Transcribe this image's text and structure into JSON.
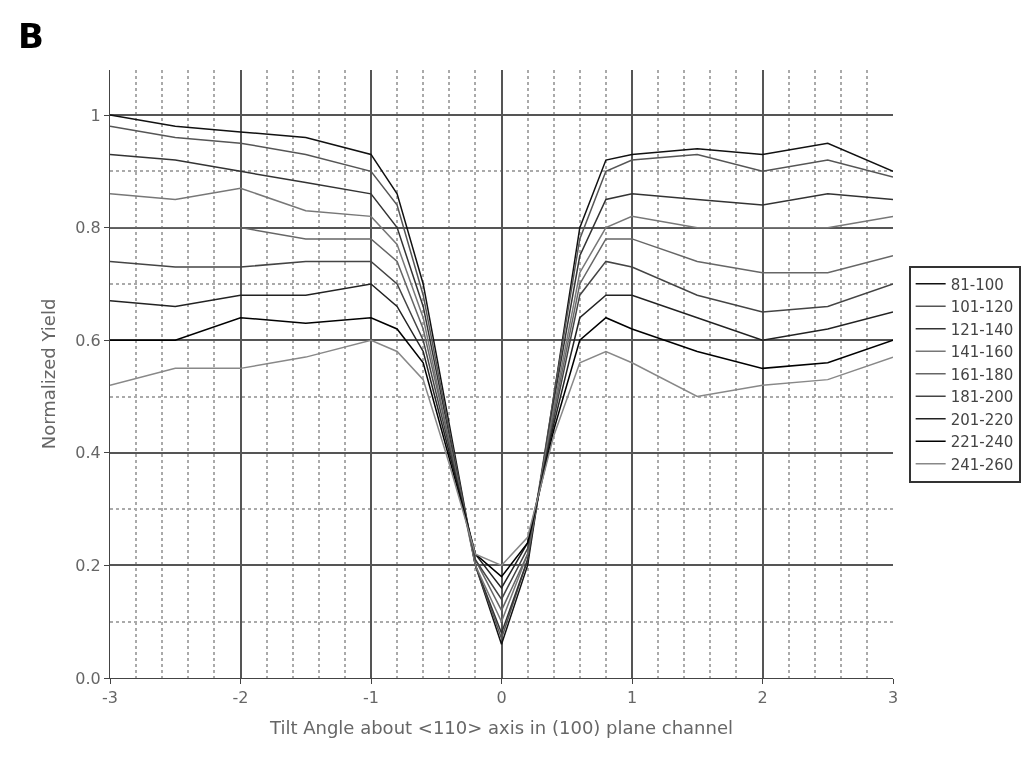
{
  "chart_data": {
    "type": "line",
    "xlabel": "Tilt Angle about <110> axis in (100) plane channel",
    "ylabel": "Normalized Yield",
    "annotations": [
      "B"
    ],
    "x": [
      -3,
      -2.5,
      -2,
      -1.5,
      -1,
      -0.8,
      -0.6,
      -0.4,
      -0.2,
      0,
      0.2,
      0.4,
      0.6,
      0.8,
      1,
      1.5,
      2,
      2.5,
      3
    ],
    "xlim": [
      -3,
      3
    ],
    "xticks": [
      -3,
      -2,
      -1,
      0,
      1,
      2,
      3
    ],
    "ylim": [
      0,
      1.08
    ],
    "yticks": [
      {
        "value": 0,
        "label": "0.0"
      },
      0.2,
      0.4,
      0.6,
      0.8,
      1
    ],
    "grid": true,
    "legend": "right",
    "marker": "none",
    "line_style": "solid",
    "series": [
      {
        "name": "81-100",
        "color": "#111111",
        "values": [
          1.0,
          0.98,
          0.97,
          0.96,
          0.93,
          0.86,
          0.7,
          0.45,
          0.2,
          0.06,
          0.2,
          0.5,
          0.8,
          0.92,
          0.93,
          0.94,
          0.93,
          0.95,
          0.9
        ]
      },
      {
        "name": "101-120",
        "color": "#555555",
        "values": [
          0.98,
          0.96,
          0.95,
          0.93,
          0.9,
          0.84,
          0.68,
          0.44,
          0.2,
          0.07,
          0.21,
          0.5,
          0.78,
          0.9,
          0.92,
          0.93,
          0.9,
          0.92,
          0.89
        ]
      },
      {
        "name": "121-140",
        "color": "#333333",
        "values": [
          0.93,
          0.92,
          0.9,
          0.88,
          0.86,
          0.8,
          0.66,
          0.43,
          0.2,
          0.08,
          0.21,
          0.49,
          0.75,
          0.85,
          0.86,
          0.85,
          0.84,
          0.86,
          0.85
        ]
      },
      {
        "name": "141-160",
        "color": "#777777",
        "values": [
          0.86,
          0.85,
          0.87,
          0.83,
          0.82,
          0.77,
          0.64,
          0.42,
          0.2,
          0.1,
          0.22,
          0.48,
          0.72,
          0.8,
          0.82,
          0.8,
          0.8,
          0.8,
          0.82
        ]
      },
      {
        "name": "161-180",
        "color": "#666666",
        "values": [
          0.8,
          0.8,
          0.8,
          0.78,
          0.78,
          0.74,
          0.62,
          0.42,
          0.21,
          0.12,
          0.22,
          0.47,
          0.7,
          0.78,
          0.78,
          0.74,
          0.72,
          0.72,
          0.75
        ]
      },
      {
        "name": "181-200",
        "color": "#444444",
        "values": [
          0.74,
          0.73,
          0.73,
          0.74,
          0.74,
          0.7,
          0.6,
          0.41,
          0.21,
          0.14,
          0.23,
          0.46,
          0.68,
          0.74,
          0.73,
          0.68,
          0.65,
          0.66,
          0.7
        ]
      },
      {
        "name": "201-220",
        "color": "#222222",
        "values": [
          0.67,
          0.66,
          0.68,
          0.68,
          0.7,
          0.66,
          0.58,
          0.4,
          0.22,
          0.16,
          0.24,
          0.45,
          0.64,
          0.68,
          0.68,
          0.64,
          0.6,
          0.62,
          0.65
        ]
      },
      {
        "name": "221-240",
        "color": "#000000",
        "values": [
          0.6,
          0.6,
          0.64,
          0.63,
          0.64,
          0.62,
          0.56,
          0.39,
          0.22,
          0.18,
          0.24,
          0.44,
          0.6,
          0.64,
          0.62,
          0.58,
          0.55,
          0.56,
          0.6
        ]
      },
      {
        "name": "241-260",
        "color": "#888888",
        "values": [
          0.52,
          0.55,
          0.55,
          0.57,
          0.6,
          0.58,
          0.53,
          0.38,
          0.22,
          0.2,
          0.25,
          0.43,
          0.56,
          0.58,
          0.56,
          0.5,
          0.52,
          0.53,
          0.57
        ]
      }
    ]
  }
}
